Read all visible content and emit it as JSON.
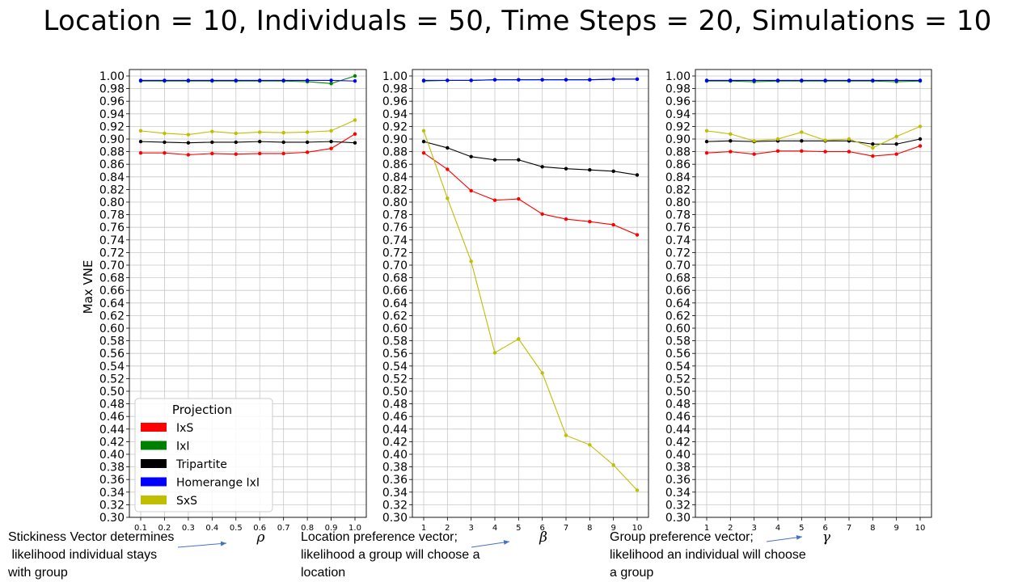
{
  "title": "Location = 10, Individuals = 50, Time Steps = 20, Simulations = 10",
  "captions": [
    "Stickiness Vector determines\n likelihood individual stays\nwith group",
    "Location preference vector;\nlikelihood a group will choose a\nlocation",
    "Group preference vector;\nlikelihood an individual will choose\na group"
  ],
  "legend": {
    "title": "Projection",
    "placement": "lower-left of first subplot"
  },
  "chart_data": [
    {
      "type": "line",
      "title": "",
      "xlabel": "ρ",
      "ylabel": "Max VNE",
      "x": [
        0.1,
        0.2,
        0.3,
        0.4,
        0.5,
        0.6,
        0.7,
        0.8,
        0.9,
        1.0
      ],
      "x_tick_labels": [
        "0.1",
        "0.2",
        "0.3",
        "0.4",
        "0.5",
        "0.6",
        "0.7",
        "0.8",
        "0.9",
        "1.0"
      ],
      "ylim": [
        0.3,
        1.0
      ],
      "grid": true,
      "legend": true,
      "series": [
        {
          "name": "IxS",
          "color": "#ff0000",
          "values": [
            0.878,
            0.878,
            0.875,
            0.877,
            0.876,
            0.877,
            0.877,
            0.879,
            0.885,
            0.908
          ]
        },
        {
          "name": "IxI",
          "color": "#008000",
          "values": [
            0.992,
            0.992,
            0.992,
            0.992,
            0.992,
            0.992,
            0.992,
            0.991,
            0.988,
            1.0
          ]
        },
        {
          "name": "Tripartite",
          "color": "#000000",
          "values": [
            0.896,
            0.895,
            0.894,
            0.895,
            0.895,
            0.896,
            0.895,
            0.895,
            0.896,
            0.894
          ]
        },
        {
          "name": "Homerange IxI",
          "color": "#0000ff",
          "values": [
            0.993,
            0.993,
            0.993,
            0.993,
            0.993,
            0.993,
            0.993,
            0.993,
            0.993,
            0.992
          ]
        },
        {
          "name": "SxS",
          "color": "#bfbf00",
          "values": [
            0.913,
            0.909,
            0.907,
            0.912,
            0.909,
            0.911,
            0.91,
            0.911,
            0.913,
            0.93
          ]
        }
      ]
    },
    {
      "type": "line",
      "title": "",
      "xlabel": "β",
      "ylabel": "",
      "x": [
        1,
        2,
        3,
        4,
        5,
        6,
        7,
        8,
        9,
        10
      ],
      "x_tick_labels": [
        "1",
        "2",
        "3",
        "4",
        "5",
        "6",
        "7",
        "8",
        "9",
        "10"
      ],
      "ylim": [
        0.3,
        1.0
      ],
      "grid": true,
      "legend": false,
      "series": [
        {
          "name": "IxS",
          "color": "#ff0000",
          "values": [
            0.878,
            0.852,
            0.818,
            0.803,
            0.805,
            0.781,
            0.773,
            0.769,
            0.764,
            0.748
          ]
        },
        {
          "name": "IxI",
          "color": "#008000",
          "values": [
            0.992,
            0.993,
            0.993,
            0.994,
            0.994,
            0.994,
            0.994,
            0.994,
            0.995,
            0.995
          ]
        },
        {
          "name": "Tripartite",
          "color": "#000000",
          "values": [
            0.896,
            0.886,
            0.872,
            0.867,
            0.867,
            0.856,
            0.853,
            0.851,
            0.849,
            0.843
          ]
        },
        {
          "name": "Homerange IxI",
          "color": "#0000ff",
          "values": [
            0.993,
            0.993,
            0.993,
            0.994,
            0.994,
            0.994,
            0.994,
            0.994,
            0.995,
            0.995
          ]
        },
        {
          "name": "SxS",
          "color": "#bfbf00",
          "values": [
            0.913,
            0.806,
            0.706,
            0.561,
            0.583,
            0.529,
            0.43,
            0.415,
            0.383,
            0.343
          ]
        }
      ]
    },
    {
      "type": "line",
      "title": "",
      "xlabel": "γ",
      "ylabel": "",
      "x": [
        1,
        2,
        3,
        4,
        5,
        6,
        7,
        8,
        9,
        10
      ],
      "x_tick_labels": [
        "1",
        "2",
        "3",
        "4",
        "5",
        "6",
        "7",
        "8",
        "9",
        "10"
      ],
      "ylim": [
        0.3,
        1.0
      ],
      "grid": true,
      "legend": false,
      "series": [
        {
          "name": "IxS",
          "color": "#ff0000",
          "values": [
            0.878,
            0.88,
            0.876,
            0.881,
            0.881,
            0.88,
            0.88,
            0.873,
            0.876,
            0.889
          ]
        },
        {
          "name": "IxI",
          "color": "#008000",
          "values": [
            0.992,
            0.992,
            0.991,
            0.992,
            0.992,
            0.992,
            0.992,
            0.992,
            0.991,
            0.992
          ]
        },
        {
          "name": "Tripartite",
          "color": "#000000",
          "values": [
            0.896,
            0.897,
            0.896,
            0.897,
            0.897,
            0.897,
            0.897,
            0.892,
            0.892,
            0.9
          ]
        },
        {
          "name": "Homerange IxI",
          "color": "#0000ff",
          "values": [
            0.993,
            0.993,
            0.993,
            0.993,
            0.993,
            0.993,
            0.993,
            0.993,
            0.993,
            0.993
          ]
        },
        {
          "name": "SxS",
          "color": "#bfbf00",
          "values": [
            0.913,
            0.908,
            0.897,
            0.9,
            0.911,
            0.898,
            0.9,
            0.886,
            0.904,
            0.92
          ]
        }
      ]
    }
  ]
}
